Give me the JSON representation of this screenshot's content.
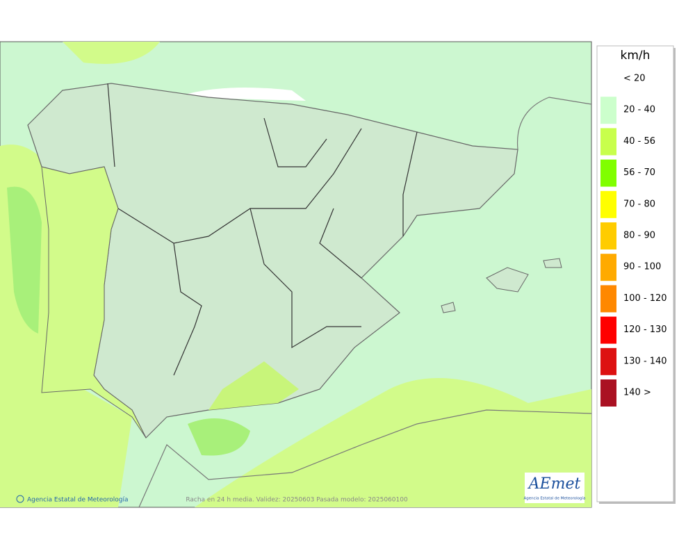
{
  "legend": {
    "title": "km/h",
    "items": [
      {
        "label": "< 20",
        "color": "#ffffff"
      },
      {
        "label": "20 - 40",
        "color": "#ccffcc"
      },
      {
        "label": "40 - 56",
        "color": "#c8ff4c"
      },
      {
        "label": "56 - 70",
        "color": "#80ff00"
      },
      {
        "label": "70 - 80",
        "color": "#ffff00"
      },
      {
        "label": "80 - 90",
        "color": "#ffcc00"
      },
      {
        "label": "90 - 100",
        "color": "#ffaa00"
      },
      {
        "label": "100 - 120",
        "color": "#ff8800"
      },
      {
        "label": "120 - 130",
        "color": "#ff0000"
      },
      {
        "label": "130 - 140",
        "color": "#dd1111"
      },
      {
        "label": "140 >",
        "color": "#aa1122"
      }
    ]
  },
  "footer": {
    "credit": "Agencia Estatal de Meteorología",
    "caption": "Racha en 24 h media. Validez: 20250603 Pasada modelo: 2025060100"
  },
  "logo": {
    "name": "AEmet",
    "subtitle": "Agencia Estatal de Meteorología"
  }
}
